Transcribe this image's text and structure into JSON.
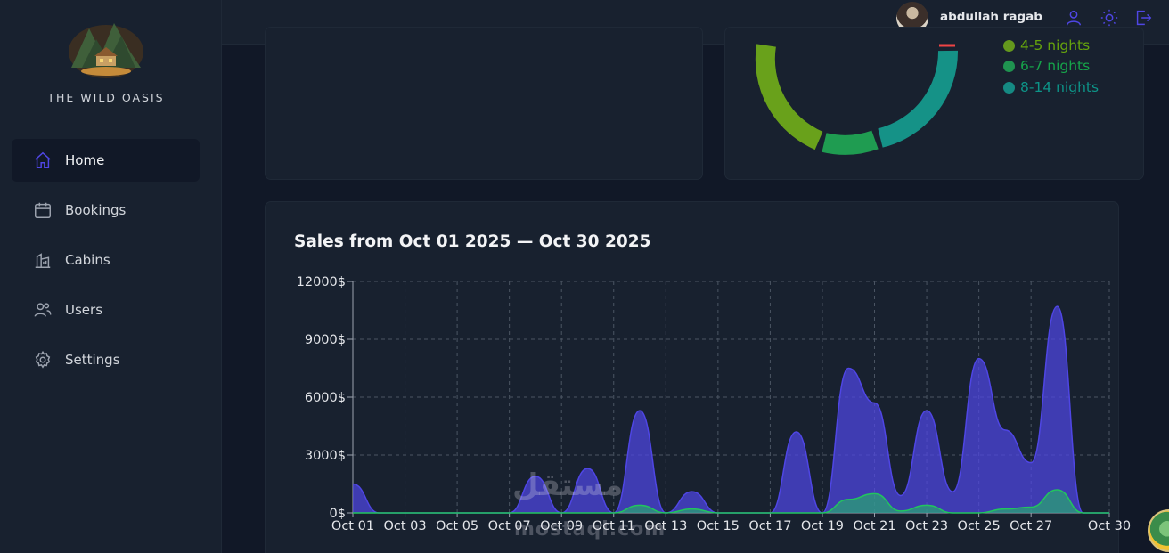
{
  "app": {
    "brand": "THE WILD OASIS"
  },
  "sidebar": {
    "items": [
      {
        "label": "Home",
        "icon": "home-icon",
        "active": true
      },
      {
        "label": "Bookings",
        "icon": "calendar-icon",
        "active": false
      },
      {
        "label": "Cabins",
        "icon": "cabin-icon",
        "active": false
      },
      {
        "label": "Users",
        "icon": "users-icon",
        "active": false
      },
      {
        "label": "Settings",
        "icon": "gear-icon",
        "active": false
      }
    ]
  },
  "header": {
    "username": "abdullah ragab",
    "icons": [
      "user-icon",
      "sun-icon",
      "logout-icon"
    ],
    "accent": "#4f46e5"
  },
  "duration_legend": {
    "items": [
      {
        "label": "4-5 nights",
        "color": "#84cc16"
      },
      {
        "label": "6-7 nights",
        "color": "#22c55e"
      },
      {
        "label": "8-14 nights",
        "color": "#14b8a6"
      }
    ]
  },
  "sales": {
    "title": "Sales from Oct 01 2025 — Oct 30 2025"
  },
  "chart_data": {
    "type": "area",
    "title": "Sales from Oct 01 2025 — Oct 30 2025",
    "y_ticks": [
      "0$",
      "3000$",
      "6000$",
      "9000$",
      "12000$"
    ],
    "x_ticks": [
      "Oct 01",
      "Oct 03",
      "Oct 05",
      "Oct 07",
      "Oct 09",
      "Oct 11",
      "Oct 13",
      "Oct 15",
      "Oct 17",
      "Oct 19",
      "Oct 21",
      "Oct 23",
      "Oct 25",
      "Oct 27",
      "Oct 30"
    ],
    "ylim": [
      0,
      12000
    ],
    "grid": true,
    "x": [
      "Oct 01",
      "Oct 02",
      "Oct 03",
      "Oct 04",
      "Oct 05",
      "Oct 06",
      "Oct 07",
      "Oct 08",
      "Oct 09",
      "Oct 10",
      "Oct 11",
      "Oct 12",
      "Oct 13",
      "Oct 14",
      "Oct 15",
      "Oct 16",
      "Oct 17",
      "Oct 18",
      "Oct 19",
      "Oct 20",
      "Oct 21",
      "Oct 22",
      "Oct 23",
      "Oct 24",
      "Oct 25",
      "Oct 26",
      "Oct 27",
      "Oct 28",
      "Oct 29",
      "Oct 30"
    ],
    "series": [
      {
        "color": "#4f46e5",
        "values": [
          1500,
          0,
          0,
          0,
          0,
          0,
          0,
          1900,
          0,
          2300,
          0,
          5300,
          0,
          1100,
          0,
          0,
          0,
          4200,
          0,
          7500,
          5700,
          900,
          5300,
          1100,
          8000,
          4300,
          2600,
          10700,
          0,
          0
        ]
      },
      {
        "color": "#22c55e",
        "values": [
          0,
          0,
          0,
          0,
          0,
          0,
          0,
          0,
          0,
          0,
          0,
          400,
          0,
          200,
          0,
          0,
          0,
          0,
          0,
          700,
          1000,
          100,
          400,
          0,
          0,
          200,
          300,
          1200,
          0,
          0
        ]
      }
    ]
  }
}
